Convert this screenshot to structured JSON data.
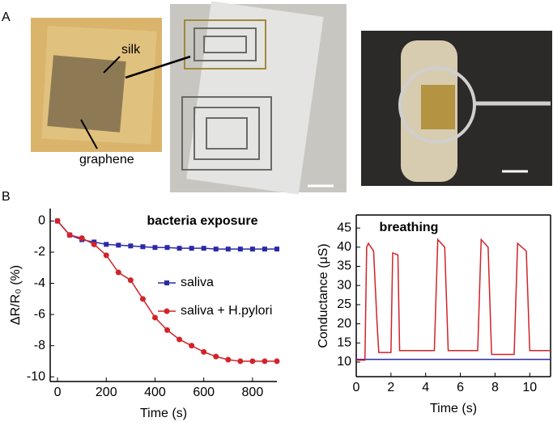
{
  "panel_labels": [
    "A",
    "B"
  ],
  "photo_labels": {
    "silk": "silk",
    "graphene": "graphene"
  },
  "chart_data": [
    {
      "type": "line",
      "title": "bacteria exposure",
      "x_label": "Time (s)",
      "y_label": "ΔR/R₀ (%)",
      "xlim": [
        -30,
        900
      ],
      "ylim": [
        -10.3,
        0.8
      ],
      "xticks": [
        0,
        200,
        400,
        600,
        800
      ],
      "yticks": [
        0,
        -2,
        -4,
        -6,
        -8,
        -10
      ],
      "x": [
        0,
        50,
        100,
        150,
        200,
        250,
        300,
        350,
        400,
        450,
        500,
        550,
        600,
        650,
        700,
        750,
        800,
        850,
        900
      ],
      "series": [
        {
          "name": "saliva",
          "color": "#2a2aa8",
          "marker": "square",
          "values": [
            0,
            -0.9,
            -1.2,
            -1.35,
            -1.5,
            -1.55,
            -1.6,
            -1.65,
            -1.7,
            -1.7,
            -1.75,
            -1.75,
            -1.75,
            -1.8,
            -1.8,
            -1.8,
            -1.8,
            -1.8,
            -1.8
          ]
        },
        {
          "name": "saliva + H.pylori",
          "color": "#d2232a",
          "marker": "circle",
          "values": [
            0,
            -0.9,
            -1.1,
            -1.5,
            -2.2,
            -3.3,
            -3.8,
            -5.0,
            -6.2,
            -7.0,
            -7.6,
            -8.0,
            -8.4,
            -8.7,
            -8.9,
            -9.0,
            -9.0,
            -9.0,
            -9.0
          ]
        }
      ],
      "legend": "center-right"
    },
    {
      "type": "line",
      "title": "breathing",
      "x_label": "Time (s)",
      "y_label": "Conductance (μS)",
      "xlim": [
        0,
        11.2
      ],
      "ylim": [
        6.2,
        48.4
      ],
      "xticks": [
        0,
        2,
        4,
        6,
        8,
        10
      ],
      "yticks": [
        10,
        15,
        20,
        25,
        30,
        35,
        40,
        45
      ],
      "series": [
        {
          "color": "#2a2aa8",
          "x": [
            0,
            11.2
          ],
          "values": [
            10.7,
            10.7
          ]
        },
        {
          "color": "#d2232a",
          "x": [
            0,
            0.5,
            0.6,
            0.7,
            1.0,
            1.2,
            1.3,
            2.0,
            2.1,
            2.4,
            2.5,
            4.5,
            4.7,
            5.1,
            5.3,
            7.0,
            7.2,
            7.6,
            7.8,
            9.1,
            9.3,
            9.8,
            10.0,
            11.2
          ],
          "values": [
            10.5,
            10.5,
            40,
            41,
            39,
            20,
            12.5,
            12.5,
            38.5,
            38,
            13,
            13,
            42,
            40,
            13,
            13,
            42,
            40,
            12,
            12,
            41,
            39,
            13,
            13
          ]
        }
      ]
    }
  ]
}
